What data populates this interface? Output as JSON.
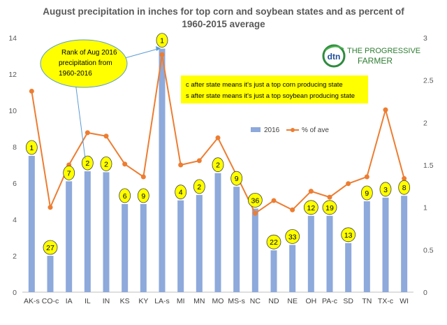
{
  "chart_data": {
    "type": "bar",
    "title": "August precipitation in inches for top corn and soybean states and as percent of 1960-2015 average",
    "title_lines": [
      "August precipitation in inches for top corn and soybean states and as percent of",
      "1960-2015 average"
    ],
    "categories": [
      "AK-s",
      "CO-c",
      "IA",
      "IL",
      "IN",
      "KS",
      "KY",
      "LA-s",
      "MI",
      "MN",
      "MO",
      "MS-s",
      "NC",
      "ND",
      "NE",
      "OH",
      "PA-c",
      "SD",
      "TN",
      "TX-c",
      "WI"
    ],
    "series": [
      {
        "name": "2016",
        "type": "bar",
        "axis": "left",
        "color": "#8EA9DB",
        "values": [
          7.5,
          2.0,
          6.1,
          6.65,
          6.6,
          4.85,
          4.85,
          13.4,
          5.05,
          5.35,
          6.55,
          5.8,
          4.6,
          2.3,
          2.6,
          4.2,
          4.2,
          2.7,
          5.0,
          5.2,
          5.3
        ]
      },
      {
        "name": "% of ave",
        "type": "line",
        "axis": "right",
        "color": "#ED7D31",
        "values": [
          2.37,
          1.0,
          1.5,
          1.88,
          1.84,
          1.51,
          1.36,
          2.8,
          1.5,
          1.55,
          1.82,
          1.38,
          0.93,
          1.08,
          0.97,
          1.19,
          1.12,
          1.28,
          1.36,
          2.15,
          1.34
        ]
      }
    ],
    "rank_labels": [
      "1",
      "27",
      "7",
      "2",
      "2",
      "6",
      "9",
      "1",
      "4",
      "2",
      "2",
      "9",
      "36",
      "22",
      "33",
      "12",
      "19",
      "13",
      "9",
      "3",
      "8"
    ],
    "rank_label_color": "#FFFF00",
    "y_left": {
      "min": 0,
      "max": 14,
      "step": 2,
      "ticks": [
        "0",
        "2",
        "4",
        "6",
        "8",
        "10",
        "12",
        "14"
      ]
    },
    "y_right": {
      "min": 0,
      "max": 3,
      "step": 0.5,
      "ticks": [
        "0",
        "0.5",
        "1",
        "1.5",
        "2",
        "2.5",
        "3"
      ]
    },
    "grid": false,
    "legend": {
      "placement": "center-right",
      "entries": [
        "2016",
        "% of ave"
      ]
    },
    "annotations": {
      "rank_bubble": {
        "lines": [
          "Rank of Aug 2016",
          "precipitation from",
          "1960-2016"
        ],
        "color": "#FFFF00"
      },
      "note_box": {
        "lines": [
          "c after state means it's just a top corn producing state",
          "s after state means it's just a top soybean producing state"
        ],
        "color": "#FFFF00"
      }
    },
    "logo": {
      "mark": "dtn",
      "text_line1": "THE PROGRESSIVE",
      "text_line2": "FARMER"
    }
  }
}
